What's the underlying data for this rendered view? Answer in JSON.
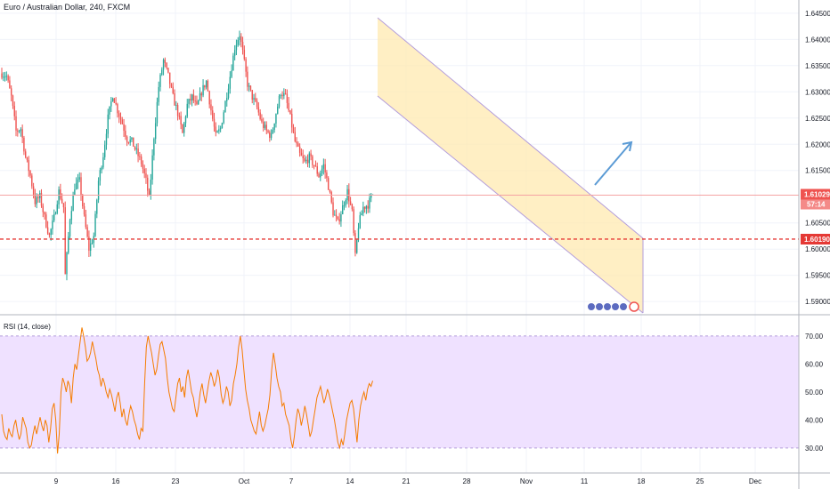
{
  "header": {
    "symbol_title": "Euro / Australian Dollar, 240, FXCM"
  },
  "colors": {
    "bull": "#26a69a",
    "bear": "#ef5350",
    "channel_fill": "#ffe9b0",
    "channel_line": "#b39ddb",
    "arrow": "#5b9bd5",
    "support_line": "#e53935",
    "current_price_line": "#f5a3a3",
    "rsi_line": "#f57c00",
    "rsi_band": "#efe1ff",
    "price_tag": "#ef5350"
  },
  "price_axis": {
    "labels": [
      "1.64500",
      "1.64000",
      "1.63500",
      "1.63000",
      "1.62500",
      "1.62000",
      "1.61500",
      "1.60500",
      "1.60000",
      "1.59500",
      "1.59000"
    ],
    "current_price": "1.61029",
    "countdown": "57:14",
    "support_level_label": "1.60190"
  },
  "time_axis": {
    "labels": [
      "9",
      "16",
      "23",
      "Oct",
      "7",
      "14",
      "21",
      "28",
      "Nov",
      "11",
      "18",
      "25",
      "Dec"
    ]
  },
  "rsi": {
    "title": "RSI (14, close)",
    "axis_labels": [
      "70.00",
      "60.00",
      "50.00",
      "40.00",
      "30.00"
    ]
  },
  "chart_data": [
    {
      "type": "candlestick",
      "title": "Euro / Australian Dollar, 240, FXCM",
      "ylim": [
        1.5885,
        1.6465
      ],
      "x_dates": [
        "9",
        "16",
        "23",
        "Oct",
        "7",
        "14",
        "21",
        "28",
        "Nov",
        "11",
        "18",
        "25",
        "Dec"
      ],
      "current_price": 1.61029,
      "support_level": 1.6019,
      "close_path": [
        [
          0,
          1.6335
        ],
        [
          3,
          1.633
        ],
        [
          6,
          1.629
        ],
        [
          9,
          1.6225
        ],
        [
          12,
          1.623
        ],
        [
          15,
          1.6175
        ],
        [
          18,
          1.614
        ],
        [
          21,
          1.609
        ],
        [
          24,
          1.61
        ],
        [
          27,
          1.606
        ],
        [
          30,
          1.6025
        ],
        [
          33,
          1.606
        ],
        [
          36,
          1.611
        ],
        [
          39,
          1.608
        ],
        [
          40,
          1.595
        ],
        [
          43,
          1.606
        ],
        [
          46,
          1.612
        ],
        [
          49,
          1.613
        ],
        [
          52,
          1.606
        ],
        [
          55,
          1.6
        ],
        [
          58,
          1.6025
        ],
        [
          61,
          1.613
        ],
        [
          64,
          1.618
        ],
        [
          67,
          1.625
        ],
        [
          70,
          1.6295
        ],
        [
          73,
          1.6265
        ],
        [
          76,
          1.624
        ],
        [
          79,
          1.621
        ],
        [
          82,
          1.6205
        ],
        [
          85,
          1.6185
        ],
        [
          88,
          1.6165
        ],
        [
          91,
          1.613
        ],
        [
          93,
          1.6095
        ],
        [
          96,
          1.6215
        ],
        [
          99,
          1.631
        ],
        [
          102,
          1.636
        ],
        [
          105,
          1.633
        ],
        [
          108,
          1.629
        ],
        [
          111,
          1.626
        ],
        [
          114,
          1.622
        ],
        [
          117,
          1.6275
        ],
        [
          120,
          1.629
        ],
        [
          123,
          1.627
        ],
        [
          126,
          1.63
        ],
        [
          129,
          1.632
        ],
        [
          132,
          1.6265
        ],
        [
          135,
          1.6215
        ],
        [
          138,
          1.623
        ],
        [
          141,
          1.628
        ],
        [
          144,
          1.633
        ],
        [
          147,
          1.6385
        ],
        [
          150,
          1.641
        ],
        [
          152,
          1.6375
        ],
        [
          155,
          1.6315
        ],
        [
          158,
          1.629
        ],
        [
          161,
          1.627
        ],
        [
          164,
          1.624
        ],
        [
          167,
          1.6225
        ],
        [
          170,
          1.6215
        ],
        [
          173,
          1.626
        ],
        [
          176,
          1.63
        ],
        [
          179,
          1.629
        ],
        [
          182,
          1.625
        ],
        [
          185,
          1.6205
        ],
        [
          188,
          1.618
        ],
        [
          191,
          1.6165
        ],
        [
          194,
          1.6175
        ],
        [
          197,
          1.616
        ],
        [
          200,
          1.614
        ],
        [
          203,
          1.616
        ],
        [
          206,
          1.612
        ],
        [
          209,
          1.607
        ],
        [
          212,
          1.605
        ],
        [
          215,
          1.608
        ],
        [
          218,
          1.611
        ],
        [
          221,
          1.607
        ],
        [
          223,
          1.5985
        ],
        [
          225,
          1.6045
        ],
        [
          228,
          1.608
        ],
        [
          231,
          1.6085
        ],
        [
          234,
          1.6105
        ]
      ]
    },
    {
      "type": "line",
      "title": "RSI (14, close)",
      "ylim": [
        22,
        76
      ],
      "levels": [
        70,
        30
      ],
      "values": [
        42,
        36,
        34,
        33,
        37,
        35,
        34,
        38,
        40,
        36,
        33,
        35,
        41,
        39,
        37,
        32,
        30,
        31,
        35,
        38,
        35,
        38,
        41,
        38,
        36,
        40,
        38,
        32,
        37,
        44,
        46,
        40,
        28,
        35,
        50,
        55,
        53,
        50,
        54,
        52,
        46,
        55,
        60,
        58,
        63,
        68,
        73,
        70,
        66,
        61,
        62,
        64,
        68,
        65,
        62,
        58,
        56,
        52,
        55,
        53,
        50,
        48,
        51,
        49,
        46,
        43,
        48,
        50,
        46,
        41,
        44,
        40,
        38,
        42,
        45,
        43,
        40,
        38,
        35,
        33,
        37,
        36,
        53,
        66,
        70,
        67,
        64,
        60,
        56,
        58,
        63,
        67,
        68,
        65,
        62,
        55,
        50,
        47,
        44,
        43,
        48,
        53,
        55,
        50,
        52,
        48,
        55,
        58,
        54,
        50,
        48,
        44,
        41,
        45,
        50,
        53,
        49,
        46,
        50,
        54,
        57,
        55,
        52,
        54,
        58,
        55,
        49,
        46,
        48,
        52,
        50,
        45,
        47,
        53,
        56,
        60,
        66,
        70,
        65,
        58,
        51,
        47,
        44,
        40,
        38,
        36,
        35,
        39,
        43,
        38,
        36,
        38,
        41,
        44,
        49,
        58,
        64,
        60,
        55,
        52,
        50,
        45,
        46,
        42,
        40,
        38,
        33,
        30,
        34,
        40,
        44,
        42,
        38,
        41,
        45,
        42,
        38,
        34,
        36,
        40,
        44,
        48,
        50,
        52,
        49,
        46,
        48,
        51,
        49,
        46,
        43,
        40,
        36,
        32,
        30,
        33,
        31,
        35,
        40,
        43,
        46,
        47,
        44,
        38,
        32,
        40,
        45,
        48,
        50,
        47,
        51,
        53,
        52,
        54
      ]
    }
  ]
}
